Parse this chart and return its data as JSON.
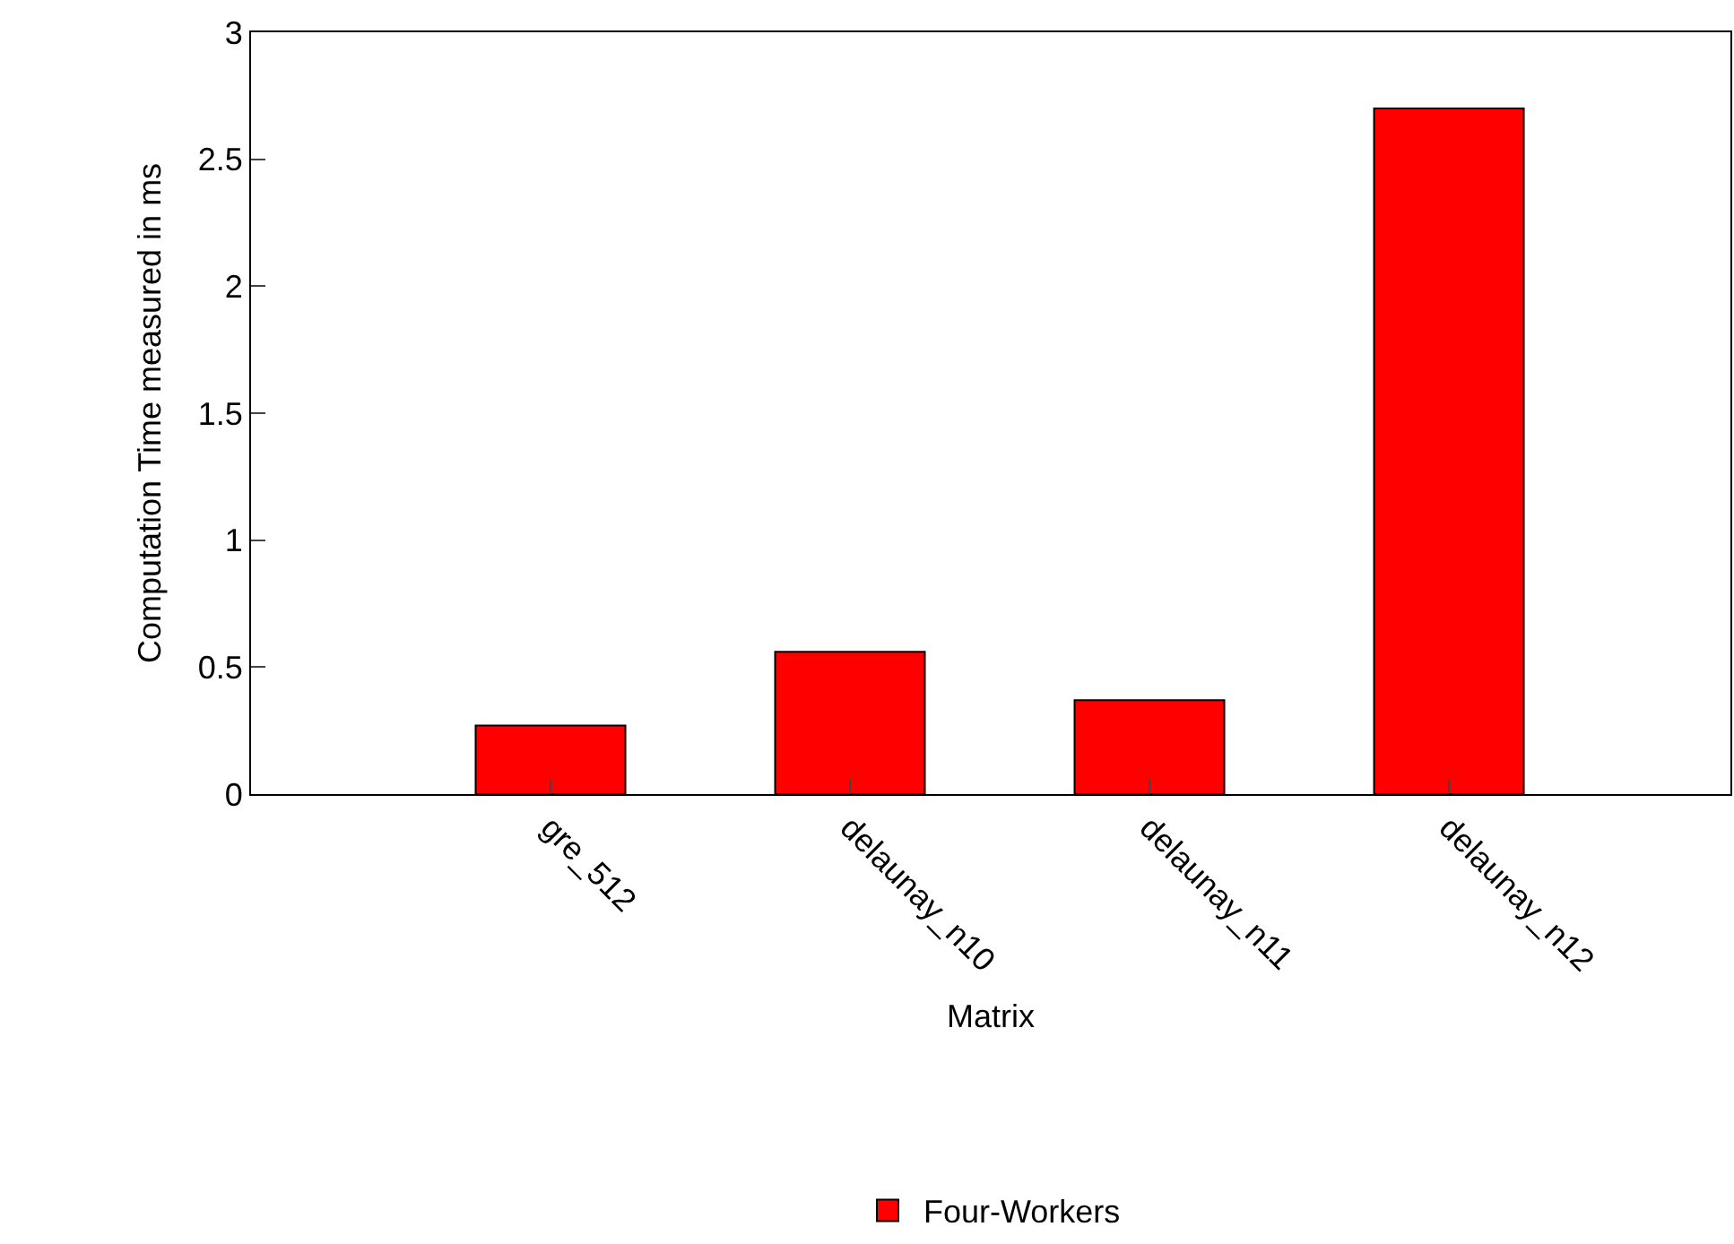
{
  "chart_data": {
    "type": "bar",
    "xlabel": "Matrix",
    "ylabel": "Computation Time measured in ms",
    "categories": [
      "gre_512",
      "delaunay_n10",
      "delaunay_n11",
      "delaunay_n12"
    ],
    "series": [
      {
        "name": "Four-Workers",
        "color": "#ff0000",
        "values": [
          0.27,
          0.56,
          0.37,
          2.7
        ]
      }
    ],
    "ylim": [
      0,
      3
    ],
    "yticks": [
      0,
      0.5,
      1,
      1.5,
      2,
      2.5,
      3
    ],
    "legend": "bottom"
  }
}
